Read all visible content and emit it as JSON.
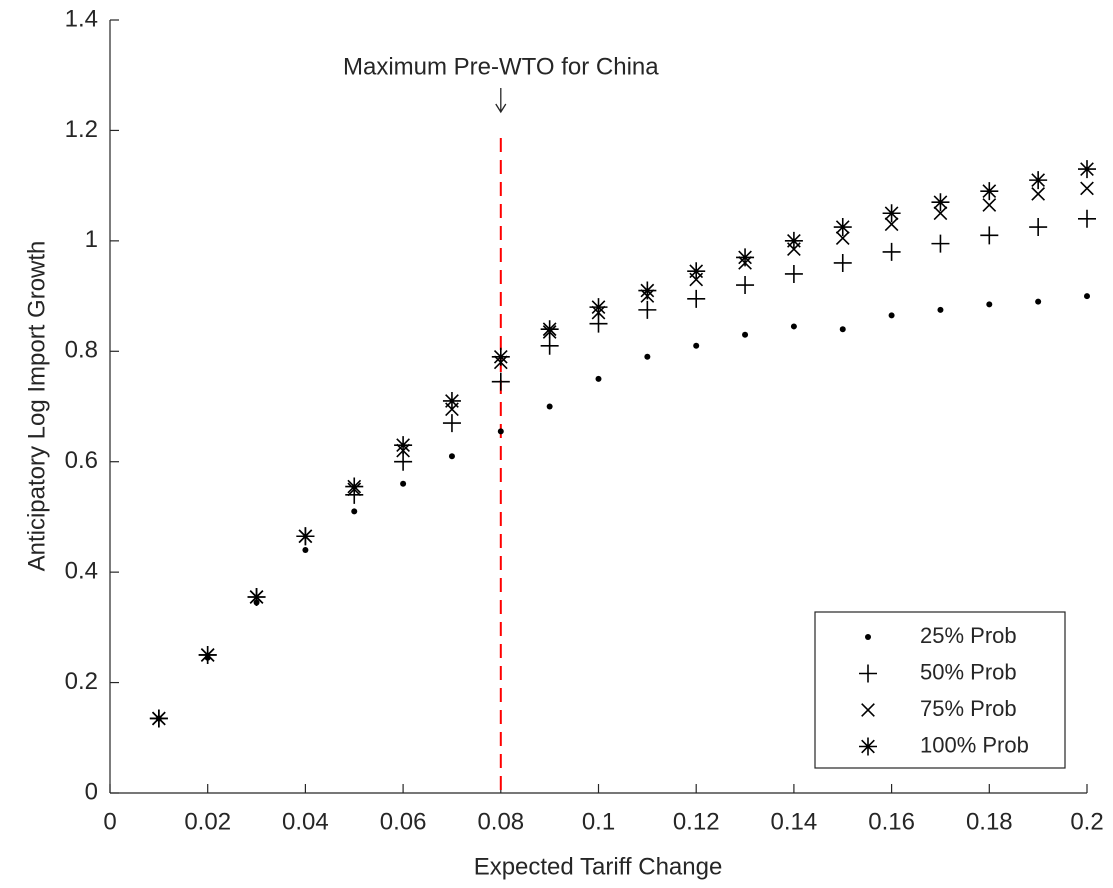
{
  "chart_data": {
    "type": "scatter",
    "xlabel": "Expected Tariff Change",
    "ylabel": "Anticipatory Log Import Growth",
    "annotation": {
      "text": "Maximum Pre-WTO for China",
      "x": 0.08,
      "color": "#ff0000"
    },
    "x": [
      0.01,
      0.02,
      0.03,
      0.04,
      0.05,
      0.06,
      0.07,
      0.08,
      0.09,
      0.1,
      0.11,
      0.12,
      0.13,
      0.14,
      0.15,
      0.16,
      0.17,
      0.18,
      0.19,
      0.2
    ],
    "series": [
      {
        "name": "25% Prob",
        "color": "#000000",
        "marker": "dot",
        "values": [
          0.135,
          0.245,
          0.345,
          0.44,
          0.51,
          0.56,
          0.61,
          0.655,
          0.7,
          0.75,
          0.79,
          0.81,
          0.83,
          0.845,
          0.84,
          0.865,
          0.875,
          0.885,
          0.89,
          0.9
        ]
      },
      {
        "name": "50% Prob",
        "color": "#000000",
        "marker": "plus",
        "values": [
          0.135,
          0.25,
          0.355,
          0.465,
          0.54,
          0.6,
          0.67,
          0.745,
          0.81,
          0.85,
          0.875,
          0.895,
          0.92,
          0.94,
          0.96,
          0.98,
          0.995,
          1.01,
          1.025,
          1.04
        ]
      },
      {
        "name": "75% Prob",
        "color": "#000000",
        "marker": "cross",
        "values": [
          0.135,
          0.25,
          0.355,
          0.465,
          0.55,
          0.62,
          0.695,
          0.78,
          0.835,
          0.87,
          0.9,
          0.93,
          0.96,
          0.985,
          1.005,
          1.03,
          1.05,
          1.065,
          1.085,
          1.095
        ]
      },
      {
        "name": "100% Prob",
        "color": "#000000",
        "marker": "star",
        "values": [
          0.135,
          0.25,
          0.355,
          0.465,
          0.555,
          0.63,
          0.71,
          0.79,
          0.84,
          0.88,
          0.91,
          0.945,
          0.97,
          1.0,
          1.025,
          1.05,
          1.07,
          1.09,
          1.11,
          1.13
        ]
      }
    ],
    "xlim": [
      0,
      0.2
    ],
    "xticks": [
      0,
      0.02,
      0.04,
      0.06,
      0.08,
      0.1,
      0.12,
      0.14,
      0.16,
      0.18,
      0.2
    ],
    "ylim": [
      0,
      1.4
    ],
    "yticks": [
      0,
      0.2,
      0.4,
      0.6,
      0.8,
      1,
      1.2,
      1.4
    ],
    "grid": false,
    "legend": "lower right"
  }
}
